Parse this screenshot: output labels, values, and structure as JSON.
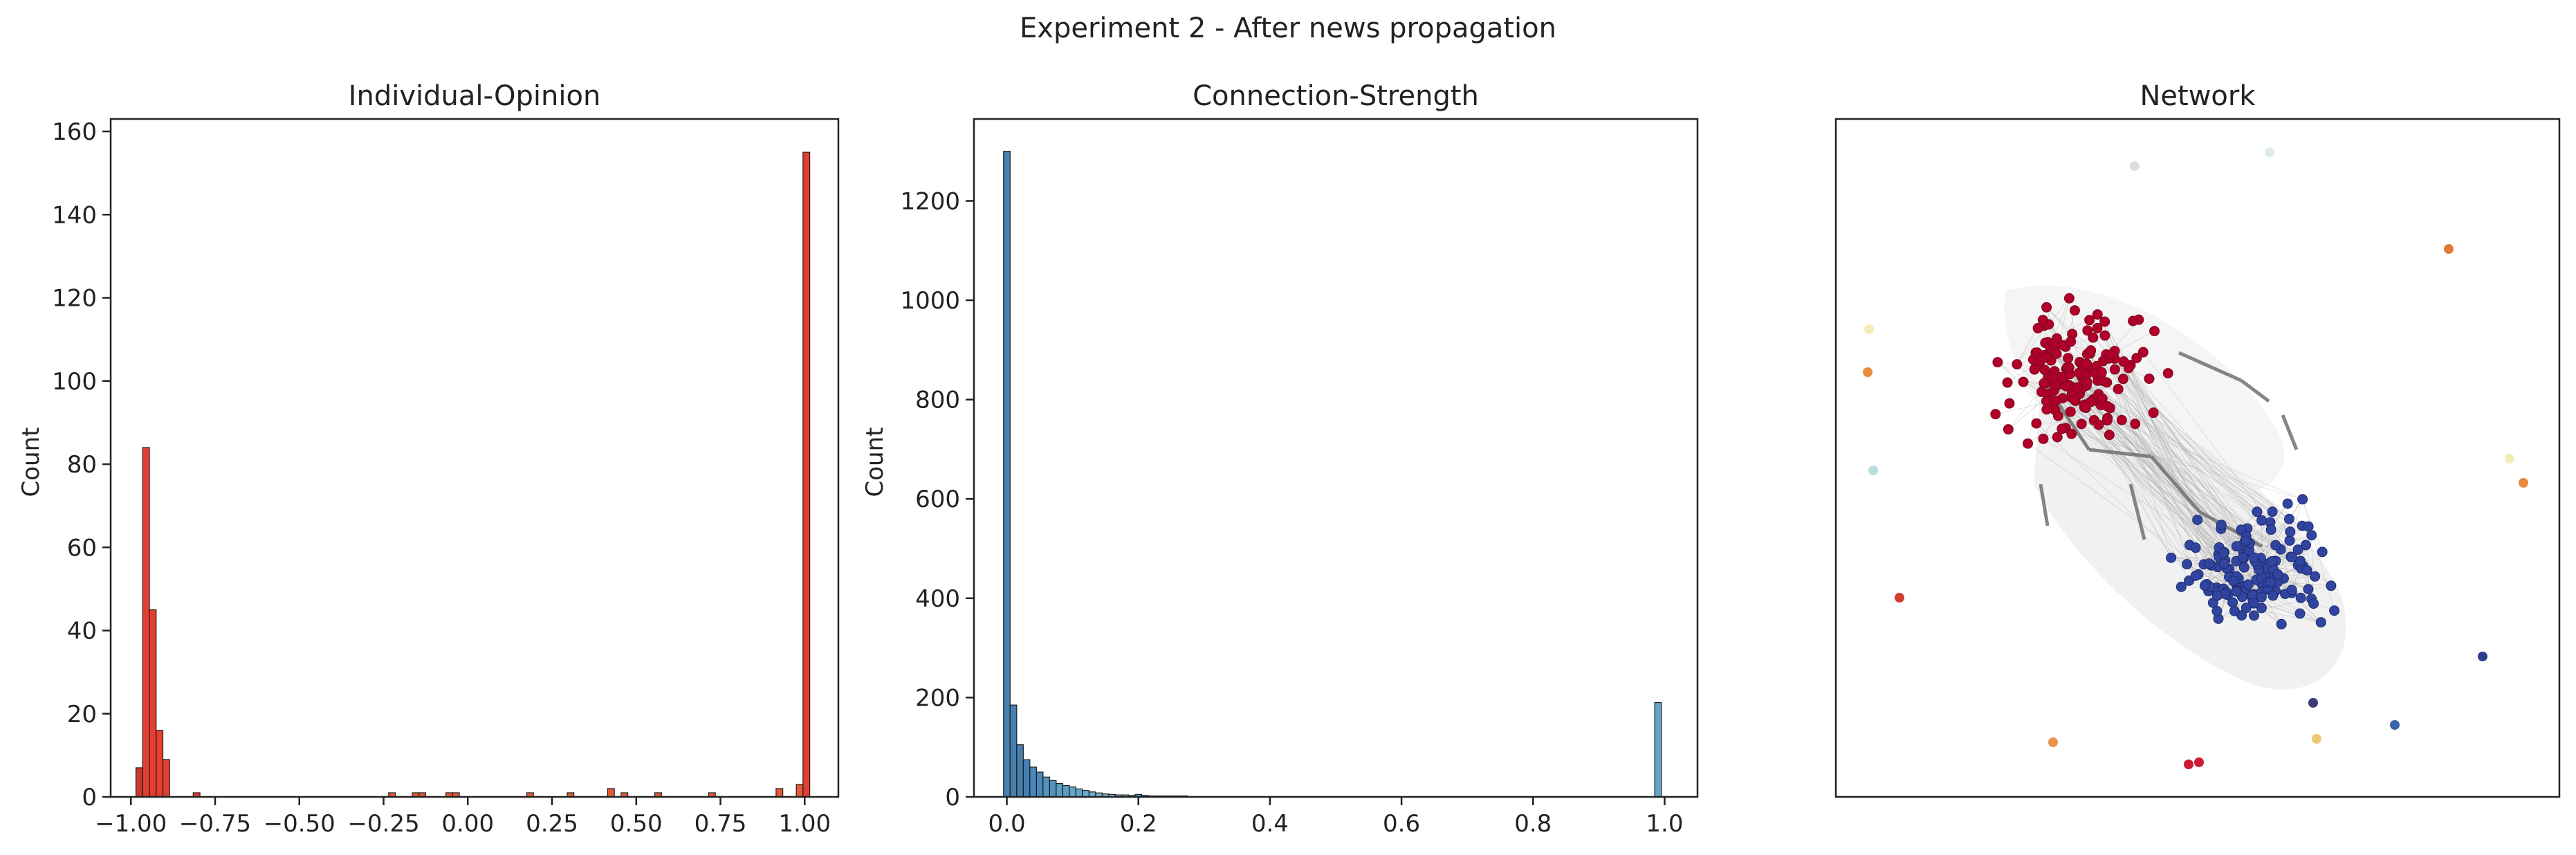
{
  "figure": {
    "suptitle": "Experiment 2 - After news propagation"
  },
  "chart_data": [
    {
      "type": "histogram",
      "title": "Individual-Opinion",
      "xlabel": "",
      "ylabel": "Count",
      "xlim": [
        -1.06,
        1.1
      ],
      "ylim": [
        0,
        163
      ],
      "xticks": [
        "−1.00",
        "−0.75",
        "−0.50",
        "−0.25",
        "0.00",
        "0.25",
        "0.50",
        "0.75",
        "1.00"
      ],
      "xtick_values": [
        -1.0,
        -0.75,
        -0.5,
        -0.25,
        0.0,
        0.25,
        0.5,
        0.75,
        1.0
      ],
      "yticks": [
        "0",
        "20",
        "40",
        "60",
        "80",
        "100",
        "120",
        "140",
        "160"
      ],
      "ytick_values": [
        0,
        20,
        40,
        60,
        80,
        100,
        120,
        140,
        160
      ],
      "bin_width": 0.02,
      "bins": [
        {
          "x": -0.975,
          "count": 7,
          "color": "#c62e22"
        },
        {
          "x": -0.955,
          "count": 84,
          "color": "#e23426"
        },
        {
          "x": -0.935,
          "count": 45,
          "color": "#e23426"
        },
        {
          "x": -0.915,
          "count": 16,
          "color": "#e23426"
        },
        {
          "x": -0.895,
          "count": 9,
          "color": "#e23426"
        },
        {
          "x": -0.805,
          "count": 1,
          "color": "#e23426"
        },
        {
          "x": -0.225,
          "count": 1,
          "color": "#e0522d"
        },
        {
          "x": -0.155,
          "count": 1,
          "color": "#e0522d"
        },
        {
          "x": -0.135,
          "count": 1,
          "color": "#e0522d"
        },
        {
          "x": -0.055,
          "count": 1,
          "color": "#e0522d"
        },
        {
          "x": -0.035,
          "count": 1,
          "color": "#e0522d"
        },
        {
          "x": 0.185,
          "count": 1,
          "color": "#e0522d"
        },
        {
          "x": 0.305,
          "count": 1,
          "color": "#e0522d"
        },
        {
          "x": 0.425,
          "count": 2,
          "color": "#e0522d"
        },
        {
          "x": 0.465,
          "count": 1,
          "color": "#e0522d"
        },
        {
          "x": 0.565,
          "count": 1,
          "color": "#e0522d"
        },
        {
          "x": 0.725,
          "count": 1,
          "color": "#e0522d"
        },
        {
          "x": 0.925,
          "count": 2,
          "color": "#e0522d"
        },
        {
          "x": 0.985,
          "count": 3,
          "color": "#e0522d"
        },
        {
          "x": 1.005,
          "count": 155,
          "color": "#e23426"
        }
      ]
    },
    {
      "type": "histogram",
      "title": "Connection-Strength",
      "xlabel": "",
      "ylabel": "Count",
      "xlim": [
        -0.05,
        1.05
      ],
      "ylim": [
        0,
        1365
      ],
      "xticks": [
        "0.0",
        "0.2",
        "0.4",
        "0.6",
        "0.8",
        "1.0"
      ],
      "xtick_values": [
        0.0,
        0.2,
        0.4,
        0.6,
        0.8,
        1.0
      ],
      "yticks": [
        "0",
        "200",
        "400",
        "600",
        "800",
        "1000",
        "1200"
      ],
      "ytick_values": [
        0,
        200,
        400,
        600,
        800,
        1000,
        1200
      ],
      "bin_width": 0.01,
      "bins": [
        {
          "x": 0.0,
          "count": 1300,
          "color": "#3b79ad"
        },
        {
          "x": 0.01,
          "count": 185,
          "color": "#3b79ad"
        },
        {
          "x": 0.02,
          "count": 105,
          "color": "#3b79ad"
        },
        {
          "x": 0.03,
          "count": 75,
          "color": "#3b79ad"
        },
        {
          "x": 0.04,
          "count": 60,
          "color": "#4283b6"
        },
        {
          "x": 0.05,
          "count": 50,
          "color": "#4283b6"
        },
        {
          "x": 0.06,
          "count": 40,
          "color": "#4a8dbd"
        },
        {
          "x": 0.07,
          "count": 33,
          "color": "#4a8dbd"
        },
        {
          "x": 0.08,
          "count": 27,
          "color": "#5397c2"
        },
        {
          "x": 0.09,
          "count": 23,
          "color": "#5397c2"
        },
        {
          "x": 0.1,
          "count": 20,
          "color": "#5c9fc4"
        },
        {
          "x": 0.11,
          "count": 16,
          "color": "#5c9fc4"
        },
        {
          "x": 0.12,
          "count": 13,
          "color": "#66a8c6"
        },
        {
          "x": 0.13,
          "count": 10,
          "color": "#66a8c6"
        },
        {
          "x": 0.14,
          "count": 8,
          "color": "#70b0c6"
        },
        {
          "x": 0.15,
          "count": 6,
          "color": "#70b0c6"
        },
        {
          "x": 0.16,
          "count": 5,
          "color": "#7bb8c5"
        },
        {
          "x": 0.17,
          "count": 4,
          "color": "#7bb8c5"
        },
        {
          "x": 0.18,
          "count": 4,
          "color": "#85bfc3"
        },
        {
          "x": 0.19,
          "count": 3,
          "color": "#85bfc3"
        },
        {
          "x": 0.2,
          "count": 5,
          "color": "#4a8dbd"
        },
        {
          "x": 0.21,
          "count": 3,
          "color": "#4a8dbd"
        },
        {
          "x": 0.22,
          "count": 2,
          "color": "#5397c2"
        },
        {
          "x": 0.23,
          "count": 2,
          "color": "#5397c2"
        },
        {
          "x": 0.24,
          "count": 2,
          "color": "#5397c2"
        },
        {
          "x": 0.25,
          "count": 2,
          "color": "#5397c2"
        },
        {
          "x": 0.26,
          "count": 2,
          "color": "#5397c2"
        },
        {
          "x": 0.27,
          "count": 2,
          "color": "#5397c2"
        },
        {
          "x": 0.99,
          "count": 190,
          "color": "#5aa0c8"
        }
      ]
    },
    {
      "type": "network",
      "title": "Network",
      "colors": {
        "cluster_a": "#b1002a",
        "cluster_b": "#3145a0",
        "edge": "#9a9a9a",
        "edge_strong": "#707070"
      }
    }
  ]
}
